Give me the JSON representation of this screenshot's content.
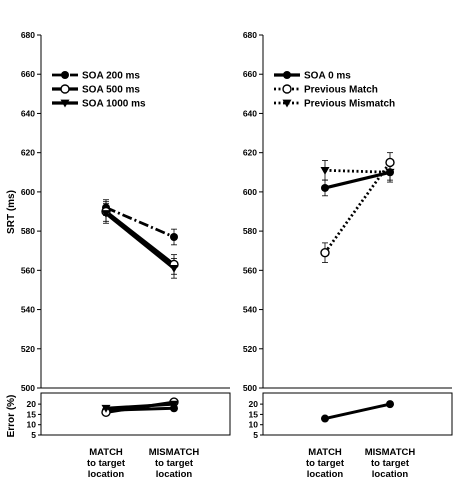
{
  "chart_data": [
    {
      "type": "line",
      "panel": "left",
      "categories": [
        [
          "MATCH",
          "to target",
          "location"
        ],
        [
          "MISMATCH",
          "to target",
          "location"
        ]
      ],
      "ylabel": "SRT (ms)",
      "ylim": [
        500,
        680
      ],
      "yticks": [
        500,
        520,
        540,
        560,
        580,
        600,
        620,
        640,
        660,
        680
      ],
      "legend_position": "top-left",
      "series": [
        {
          "name": "SOA 200 ms",
          "style": "dashdot",
          "marker": "filled-circle",
          "values": [
            592,
            577
          ],
          "err": [
            4,
            4
          ]
        },
        {
          "name": "SOA 500 ms",
          "style": "solid",
          "marker": "open-circle",
          "values": [
            590,
            563
          ],
          "err": [
            5,
            5
          ]
        },
        {
          "name": "SOA 1000 ms",
          "style": "solid",
          "marker": "filled-triangle",
          "values": [
            589,
            561
          ],
          "err": [
            5,
            5
          ]
        }
      ],
      "error_panel": {
        "ylabel": "Error (%)",
        "ylim": [
          5,
          22
        ],
        "yticks": [
          5,
          10,
          15,
          20
        ],
        "series": [
          {
            "name": "SOA 200 ms",
            "values": [
              17,
              18
            ]
          },
          {
            "name": "SOA 500 ms",
            "values": [
              16,
              21
            ]
          },
          {
            "name": "SOA 1000 ms",
            "values": [
              18,
              20
            ]
          }
        ]
      }
    },
    {
      "type": "line",
      "panel": "right",
      "categories": [
        [
          "MATCH",
          "to target",
          "location"
        ],
        [
          "MISMATCH",
          "to target",
          "location"
        ]
      ],
      "ylabel": "",
      "ylim": [
        500,
        680
      ],
      "yticks": [
        500,
        520,
        540,
        560,
        580,
        600,
        620,
        640,
        660,
        680
      ],
      "legend_position": "top-left",
      "series": [
        {
          "name": "SOA 0 ms",
          "style": "solid",
          "marker": "filled-circle",
          "values": [
            602,
            610
          ],
          "err": [
            4,
            4
          ]
        },
        {
          "name": "Previous Match",
          "style": "dotted",
          "marker": "open-circle",
          "values": [
            569,
            615
          ],
          "err": [
            5,
            5
          ]
        },
        {
          "name": "Previous Mismatch",
          "style": "dotted",
          "marker": "filled-triangle",
          "values": [
            611,
            610
          ],
          "err": [
            5,
            5
          ]
        }
      ],
      "error_panel": {
        "ylabel": "",
        "ylim": [
          5,
          22
        ],
        "yticks": [
          5,
          10,
          15,
          20
        ],
        "series": [
          {
            "name": "SOA 0 ms",
            "values": [
              13,
              20
            ]
          }
        ]
      }
    }
  ]
}
